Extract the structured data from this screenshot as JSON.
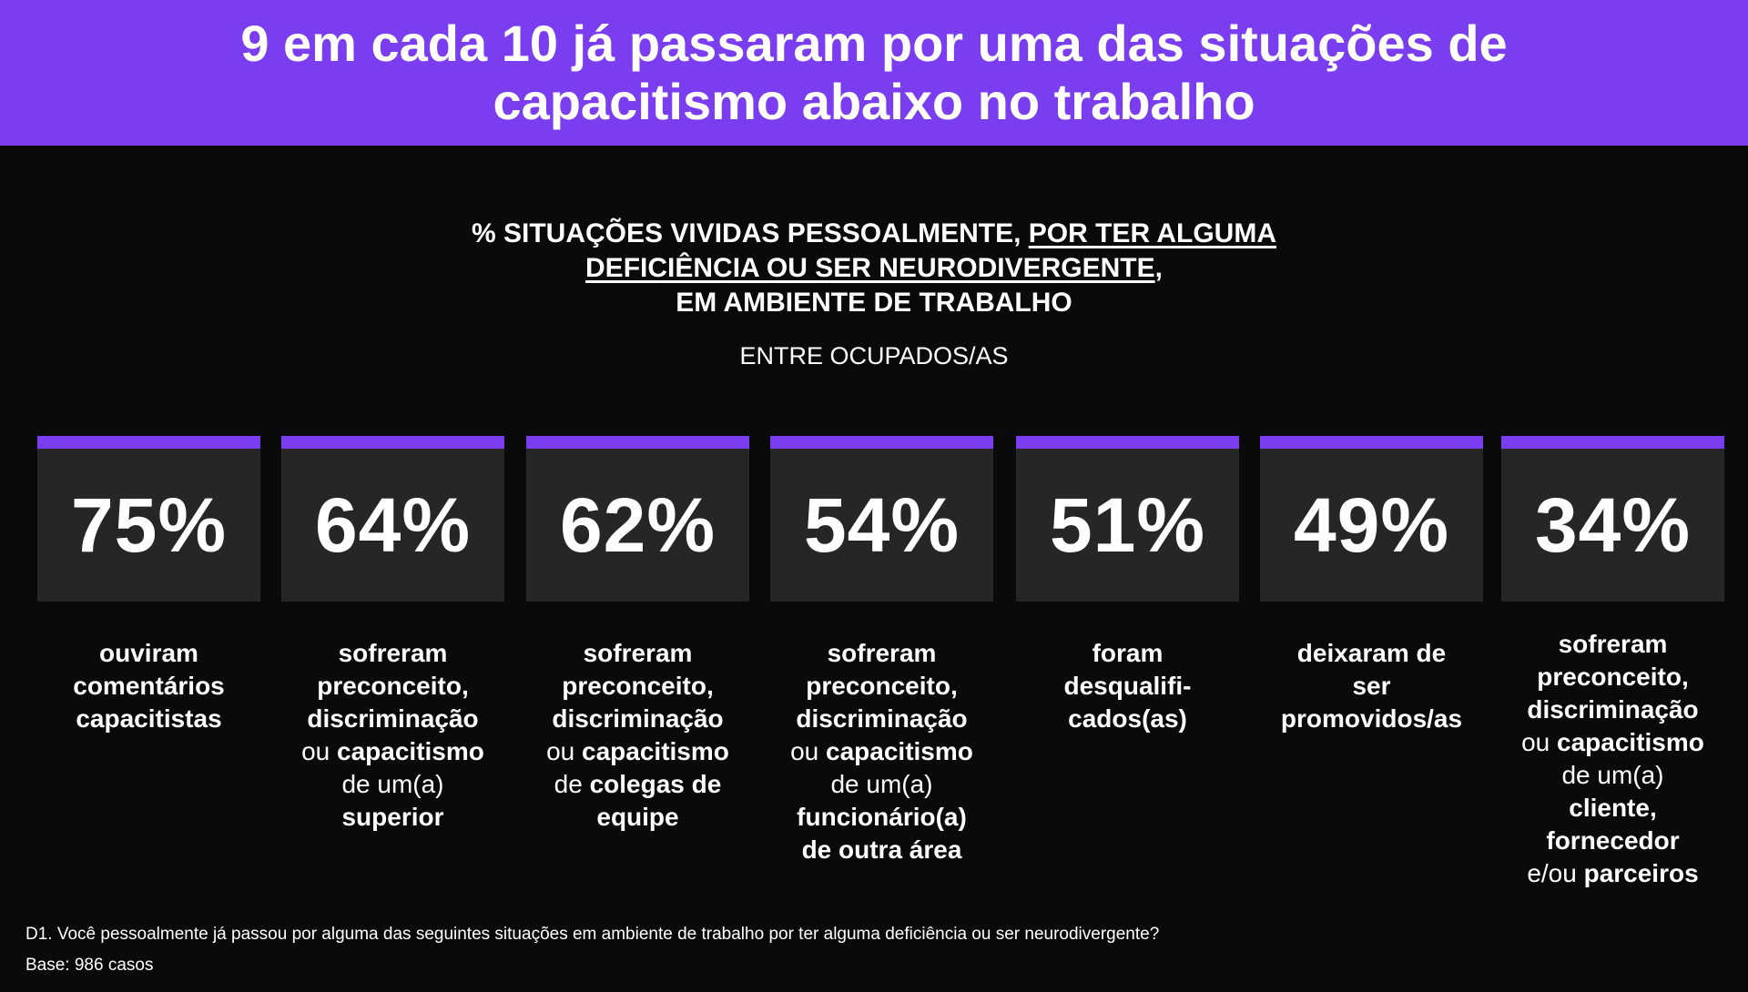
{
  "header": {
    "title_line1": "9 em cada 10 já passaram por uma das situações de",
    "title_line2": "capacitismo abaixo no trabalho"
  },
  "subtitle": {
    "line1_a": "% SITUAÇÕES VIVIDAS PESSOALMENTE, ",
    "line1_b": "POR TER ALGUMA",
    "line2_a": "DEFICIÊNCIA OU SER NEURODIVERGENTE",
    "line2_b": ",",
    "line3": "EM AMBIENTE DE TRABALHO"
  },
  "filter_label": "ENTRE OCUPADOS/AS",
  "chart_data": {
    "type": "bar",
    "title": "% SITUAÇÕES VIVIDAS PESSOALMENTE, POR TER ALGUMA DEFICIÊNCIA OU SER NEURODIVERGENTE, EM AMBIENTE DE TRABALHO",
    "subtitle": "ENTRE OCUPADOS/AS",
    "unit": "%",
    "values": [
      75,
      64,
      62,
      54,
      51,
      49,
      34
    ],
    "value_labels": [
      "75%",
      "64%",
      "62%",
      "54%",
      "51%",
      "49%",
      "34%"
    ],
    "categories": [
      "ouviram comentários capacitistas",
      "sofreram preconceito, discriminação ou capacitismo de um(a) superior",
      "sofreram preconceito, discriminação ou capacitismo de colegas de equipe",
      "sofreram preconceito, discriminação ou capacitismo de um(a) funcionário(a) de outra área",
      "foram desqualifi-cados(as)",
      "deixaram de ser promovidos/as",
      "sofreram preconceito, discriminação ou capacitismo de um(a) cliente, fornecedor e/ou parceiros"
    ]
  },
  "descriptions": [
    {
      "l1": "ouviram",
      "l2": "comentários",
      "l3": "capacitistas"
    },
    {
      "l1": "sofreram",
      "l2": "preconceito,",
      "l3": "discriminação",
      "l4a": "ou ",
      "l4b": "capacitismo",
      "l5": "de um(a)",
      "l6": "superior"
    },
    {
      "l1": "sofreram",
      "l2": "preconceito,",
      "l3": "discriminação",
      "l4a": "ou ",
      "l4b": "capacitismo",
      "l5a": "de ",
      "l5b": "colegas de",
      "l6": "equipe"
    },
    {
      "l1": "sofreram",
      "l2": "preconceito,",
      "l3": "discriminação",
      "l4a": "ou ",
      "l4b": "capacitismo",
      "l5": "de um(a)",
      "l6": "funcionário(a)",
      "l7": "de outra área"
    },
    {
      "l1": "foram",
      "l2": "desqualifi-",
      "l3": "cados(as)"
    },
    {
      "l1": "deixaram de",
      "l2": "ser",
      "l3": "promovidos/as"
    },
    {
      "l1": "sofreram",
      "l2": "preconceito,",
      "l3": "discriminação",
      "l4a": "ou ",
      "l4b": "capacitismo",
      "l5": "de um(a)",
      "l6": "cliente,",
      "l7": "fornecedor",
      "l8a": "e/ou ",
      "l8b": "parceiros"
    }
  ],
  "footnote": {
    "question": "D1. Você pessoalmente já passou por alguma das seguintes situações em ambiente de trabalho por ter alguma deficiência ou ser neurodivergente?",
    "base": "Base: 986 casos"
  },
  "colors": {
    "accent": "#7b3df0",
    "background": "#0a0a0a",
    "card": "#262626",
    "text": "#ffffff"
  }
}
